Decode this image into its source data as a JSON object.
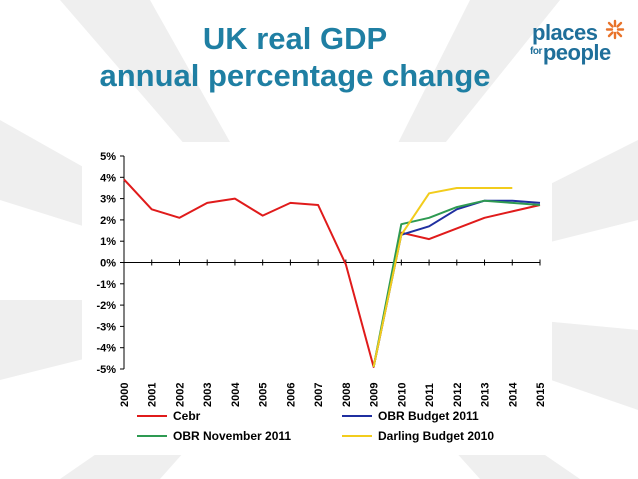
{
  "title": {
    "line1": "UK real GDP",
    "line2": "annual percentage change"
  },
  "logo": {
    "text_top": "places",
    "text_small": "for",
    "text_bottom": "people",
    "icon": "starburst-icon"
  },
  "colors": {
    "title": "#1f7fa3",
    "cebr": "#e01b1b",
    "obr_budget_2011": "#1f2fa0",
    "obr_november_2011": "#2e9a52",
    "darling_budget_2010": "#f2cc1c",
    "logo_star": "#e8732a"
  },
  "chart_data": {
    "type": "line",
    "title": "",
    "xlabel": "",
    "ylabel": "",
    "x": [
      "2000",
      "2001",
      "2002",
      "2003",
      "2004",
      "2005",
      "2006",
      "2007",
      "2008",
      "2009",
      "2010",
      "2011",
      "2012",
      "2013",
      "2014",
      "2015"
    ],
    "ylim": [
      -5,
      5
    ],
    "yticks": [
      "5%",
      "4%",
      "3%",
      "2%",
      "1%",
      "0%",
      "-1%",
      "-2%",
      "-3%",
      "-4%",
      "-5%"
    ],
    "grid": false,
    "legend_position": "bottom",
    "series": [
      {
        "name": "Cebr",
        "color": "#e01b1b",
        "values": [
          3.9,
          2.5,
          2.1,
          2.8,
          3.0,
          2.2,
          2.8,
          2.7,
          -0.1,
          -4.9,
          1.4,
          1.1,
          1.6,
          2.1,
          2.4,
          2.7
        ]
      },
      {
        "name": "OBR Budget 2011",
        "color": "#1f2fa0",
        "values": [
          null,
          null,
          null,
          null,
          null,
          null,
          null,
          null,
          null,
          -4.9,
          1.3,
          1.7,
          2.5,
          2.9,
          2.9,
          2.8
        ]
      },
      {
        "name": "OBR November 2011",
        "color": "#2e9a52",
        "values": [
          null,
          null,
          null,
          null,
          null,
          null,
          null,
          null,
          null,
          -4.9,
          1.8,
          2.1,
          2.6,
          2.9,
          2.8,
          2.7
        ]
      },
      {
        "name": "Darling Budget 2010",
        "color": "#f2cc1c",
        "values": [
          null,
          null,
          null,
          null,
          null,
          null,
          null,
          null,
          null,
          -4.9,
          1.3,
          3.25,
          3.5,
          3.5,
          3.5,
          null
        ]
      }
    ]
  }
}
